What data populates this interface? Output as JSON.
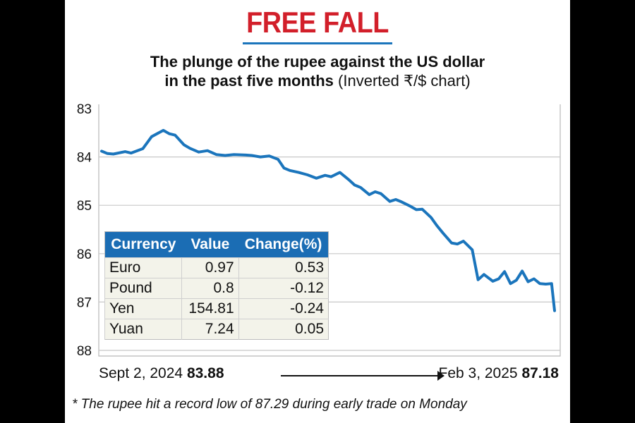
{
  "headline": "FREE FALL",
  "subtitle_bold_line1": "The plunge of the rupee against the US dollar",
  "subtitle_bold_line2": "in the past five months",
  "subtitle_note": "(Inverted ₹/$ chart)",
  "start": {
    "date": "Sept 2, 2024",
    "value": "83.88"
  },
  "end": {
    "date": "Feb 3, 2025",
    "value": "87.18"
  },
  "footnote": "* The rupee hit a record low of 87.29 during early trade on Monday",
  "colors": {
    "headline": "#d21f2a",
    "line": "#1b75bc",
    "table_header": "#1b6db4"
  },
  "table": {
    "headers": [
      "Currency",
      "Value",
      "Change(%)"
    ],
    "rows": [
      {
        "currency": "Euro",
        "value": "0.97",
        "change": "0.53"
      },
      {
        "currency": "Pound",
        "value": "0.8",
        "change": "-0.12"
      },
      {
        "currency": "Yen",
        "value": "154.81",
        "change": "-0.24"
      },
      {
        "currency": "Yuan",
        "value": "7.24",
        "change": "0.05"
      }
    ]
  },
  "chart_data": {
    "type": "line",
    "title": "",
    "xlabel": "",
    "ylabel": "",
    "ylim": [
      83,
      88
    ],
    "y_inverted": true,
    "y_ticks": [
      83,
      84,
      85,
      86,
      87,
      88
    ],
    "grid": "horizontal",
    "x_range": [
      "2024-09-02",
      "2025-02-03"
    ],
    "series": [
      {
        "x": [
          "2024-09-02",
          "2024-09-04",
          "2024-09-06",
          "2024-09-10",
          "2024-09-12",
          "2024-09-16",
          "2024-09-19",
          "2024-09-23",
          "2024-09-25",
          "2024-09-27",
          "2024-09-30",
          "2024-10-02",
          "2024-10-05",
          "2024-10-08",
          "2024-10-11",
          "2024-10-14",
          "2024-10-17",
          "2024-10-21",
          "2024-10-23",
          "2024-10-26",
          "2024-10-29",
          "2024-11-01",
          "2024-11-03",
          "2024-11-05",
          "2024-11-08",
          "2024-11-11",
          "2024-11-14",
          "2024-11-17",
          "2024-11-19",
          "2024-11-22",
          "2024-11-25",
          "2024-11-27",
          "2024-11-29",
          "2024-12-02",
          "2024-12-04",
          "2024-12-06",
          "2024-12-09",
          "2024-12-11",
          "2024-12-13",
          "2024-12-16",
          "2024-12-18",
          "2024-12-20",
          "2024-12-23",
          "2024-12-25",
          "2024-12-27",
          "2024-12-30",
          "2025-01-01",
          "2025-01-03",
          "2025-01-06",
          "2025-01-08",
          "2025-01-10",
          "2025-01-13",
          "2025-01-15",
          "2025-01-17",
          "2025-01-19",
          "2025-01-21",
          "2025-01-23",
          "2025-01-25",
          "2025-01-27",
          "2025-01-29",
          "2025-01-31",
          "2025-02-02",
          "2025-02-03"
        ],
        "values": [
          83.88,
          83.93,
          83.94,
          83.89,
          83.92,
          83.83,
          83.58,
          83.45,
          83.52,
          83.55,
          83.75,
          83.82,
          83.9,
          83.87,
          83.95,
          83.97,
          83.95,
          83.96,
          83.97,
          84.0,
          83.98,
          84.05,
          84.23,
          84.28,
          84.32,
          84.37,
          84.44,
          84.38,
          84.41,
          84.32,
          84.47,
          84.58,
          84.63,
          84.78,
          84.72,
          84.76,
          84.92,
          84.88,
          84.93,
          85.02,
          85.09,
          85.08,
          85.25,
          85.42,
          85.57,
          85.78,
          85.8,
          85.74,
          85.92,
          86.54,
          86.43,
          86.57,
          86.52,
          86.37,
          86.62,
          86.55,
          86.36,
          86.58,
          86.52,
          86.62,
          86.63,
          86.62,
          87.18
        ]
      }
    ]
  }
}
